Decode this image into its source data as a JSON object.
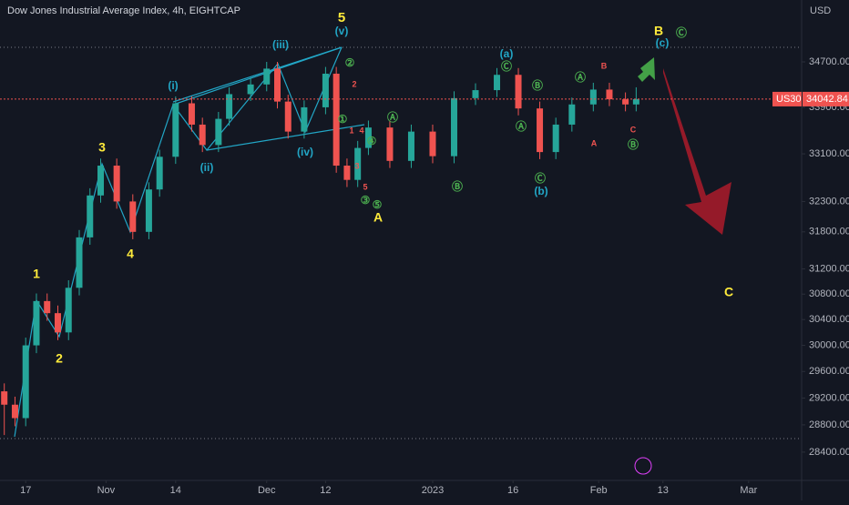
{
  "chart_data": {
    "type": "candlestick",
    "title": "Dow Jones Industrial Average Index, 4h, EIGHTCAP",
    "y_label": "USD",
    "symbol": "US30",
    "last_price": 34042.84,
    "log_scale": true,
    "grid": false,
    "up_color": "#26a69a",
    "down_color": "#ef5350",
    "xlim": [
      -4.8,
      144.9
    ],
    "xticks": [
      {
        "value": 0,
        "label": "17"
      },
      {
        "value": 15,
        "label": "Nov"
      },
      {
        "value": 28,
        "label": "14"
      },
      {
        "value": 45,
        "label": "Dec"
      },
      {
        "value": 56,
        "label": "12"
      },
      {
        "value": 76,
        "label": "2023"
      },
      {
        "value": 91,
        "label": "16"
      },
      {
        "value": 107,
        "label": "Feb"
      },
      {
        "value": 119,
        "label": "13"
      },
      {
        "value": 135,
        "label": "Mar"
      }
    ],
    "ylim": [
      27990,
      35820
    ],
    "yticks": [
      {
        "value": 28400,
        "label": "28400.00"
      },
      {
        "value": 28800,
        "label": "28800.00"
      },
      {
        "value": 29200,
        "label": "29200.00"
      },
      {
        "value": 29600,
        "label": "29600.00"
      },
      {
        "value": 30000,
        "label": "30000.00"
      },
      {
        "value": 30400,
        "label": "30400.00"
      },
      {
        "value": 30800,
        "label": "30800.00"
      },
      {
        "value": 31200,
        "label": "31200.00"
      },
      {
        "value": 31800,
        "label": "31800.00"
      },
      {
        "value": 32300,
        "label": "32300.00"
      },
      {
        "value": 33100,
        "label": "33100.00"
      },
      {
        "value": 33900,
        "label": "33900.00"
      },
      {
        "value": 34700,
        "label": "34700.00"
      }
    ],
    "x": [
      -4,
      -2,
      0,
      2,
      4,
      6,
      8,
      10,
      12,
      14,
      17,
      20,
      23,
      25,
      28,
      31,
      33,
      36,
      38,
      42,
      45,
      47,
      49,
      52,
      56,
      58,
      60,
      62,
      64,
      68,
      72,
      76,
      80,
      84,
      88,
      92,
      96,
      99,
      102,
      106,
      109,
      112,
      114
    ],
    "open": [
      29300,
      29100,
      28900,
      30000,
      30690,
      30500,
      30200,
      30900,
      31710,
      32400,
      32900,
      32300,
      31800,
      32500,
      33050,
      33970,
      33600,
      33250,
      33700,
      34130,
      34300,
      34580,
      34000,
      33480,
      33900,
      34490,
      32900,
      32660,
      33200,
      33550,
      32980,
      33480,
      33060,
      34060,
      34200,
      34470,
      33880,
      33130,
      33600,
      33950,
      34210,
      34040,
      33950
    ],
    "high": [
      29420,
      29220,
      30120,
      30810,
      30810,
      30620,
      31020,
      31830,
      32520,
      33020,
      33020,
      32420,
      32620,
      33170,
      34090,
      34090,
      33720,
      33820,
      34250,
      34420,
      34700,
      34700,
      34120,
      34020,
      34610,
      34610,
      33020,
      33320,
      33670,
      33670,
      33600,
      33600,
      34180,
      34320,
      34590,
      34590,
      34000,
      33720,
      34070,
      34330,
      34330,
      34160,
      34250
    ],
    "low": [
      28650,
      28780,
      28780,
      29880,
      30380,
      30080,
      30080,
      30780,
      31590,
      32280,
      32180,
      31680,
      31680,
      32380,
      32930,
      33480,
      33130,
      33130,
      33580,
      34010,
      34180,
      33880,
      33360,
      33360,
      33780,
      32780,
      32540,
      32540,
      33080,
      32860,
      32860,
      32940,
      32940,
      33940,
      34080,
      33760,
      33010,
      33010,
      33480,
      33830,
      33920,
      33830,
      33830
    ],
    "close": [
      29100,
      28900,
      30000,
      30690,
      30500,
      30200,
      30900,
      31710,
      32400,
      32900,
      32300,
      31800,
      32500,
      33050,
      33970,
      33600,
      33250,
      33700,
      34130,
      34300,
      34580,
      34000,
      33480,
      33900,
      34490,
      32900,
      32660,
      33200,
      33550,
      32980,
      33480,
      33060,
      34060,
      34200,
      34470,
      33880,
      33130,
      33600,
      33950,
      34210,
      34040,
      33950,
      34042.84
    ],
    "annotations": [
      "5",
      "1",
      "2",
      "3",
      "4",
      "A",
      "B",
      "C",
      "(v)",
      "(i)",
      "(ii)",
      "(iii)",
      "(iv)",
      "(a)",
      "(b)",
      "(c)",
      "②",
      "①",
      "④",
      "③",
      "⑤",
      "Ⓐ",
      "Ⓑ",
      "Ⓒ",
      "Ⓑ",
      "Ⓐ",
      "Ⓒ",
      "Ⓐ",
      "Ⓑ",
      "Ⓒ",
      "B",
      "A",
      "C",
      "2",
      "1",
      "4",
      "3",
      "5"
    ]
  }
}
